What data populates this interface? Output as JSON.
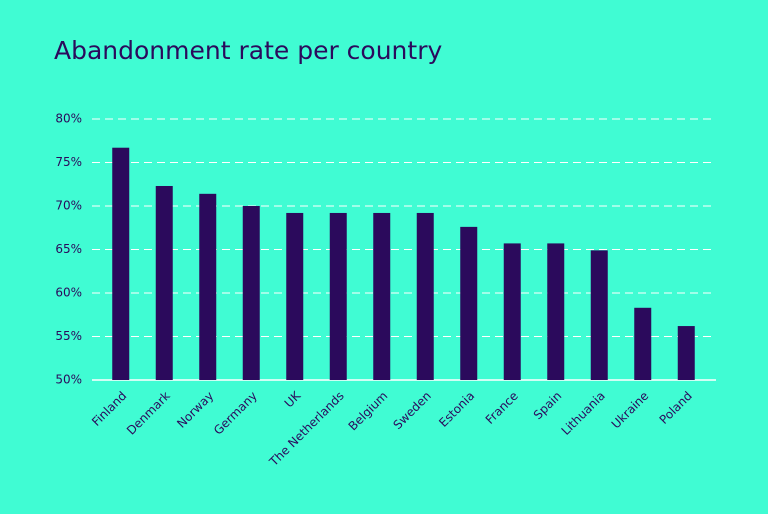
{
  "chart_data": {
    "type": "bar",
    "title": "Abandonment rate per country",
    "categories": [
      "Finland",
      "Denmark",
      "Norway",
      "Germany",
      "UK",
      "The Netherlands",
      "Belgium",
      "Sweden",
      "Estonia",
      "France",
      "Spain",
      "Lithuania",
      "Ukraine",
      "Poland"
    ],
    "values": [
      76.7,
      72.3,
      71.4,
      70,
      69.2,
      69.2,
      69.2,
      69.2,
      67.6,
      65.7,
      65.7,
      64.9,
      58.3,
      56.2
    ],
    "color": "#2b0a5c",
    "ylim": [
      50,
      80
    ],
    "yticks": [
      {
        "value": 50,
        "label": "50%"
      },
      {
        "value": 55,
        "label": "55%"
      },
      {
        "value": 60,
        "label": "60%"
      },
      {
        "value": 65,
        "label": "65%"
      },
      {
        "value": 70,
        "label": "70%"
      },
      {
        "value": 75,
        "label": "75%"
      },
      {
        "value": 80,
        "label": "80%"
      }
    ],
    "grid": true
  }
}
